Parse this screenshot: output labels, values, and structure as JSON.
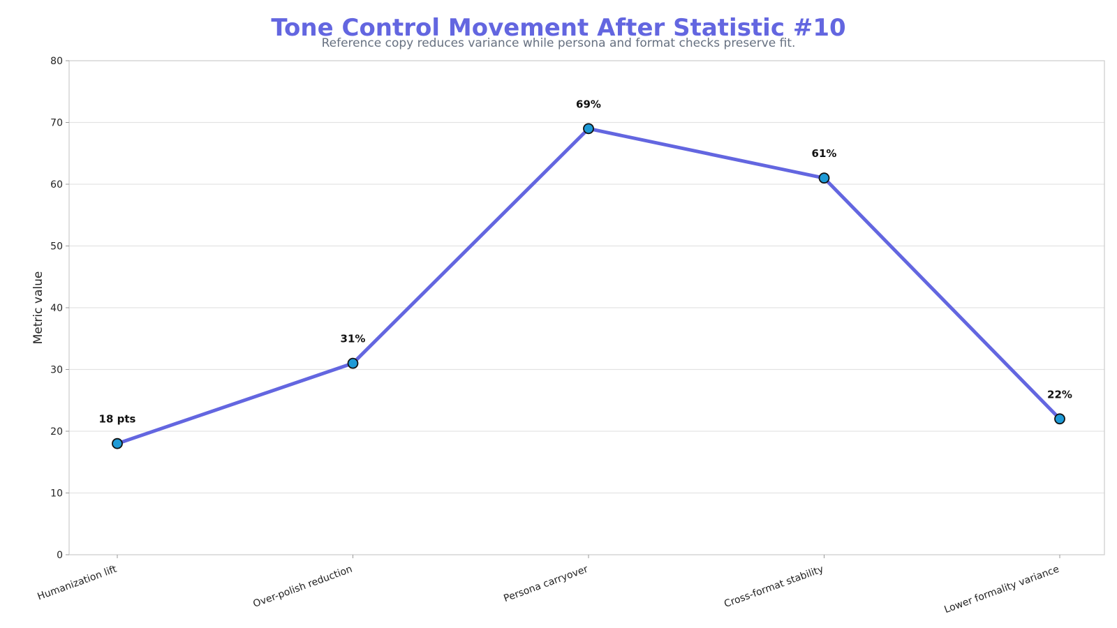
{
  "chart_data": {
    "type": "line",
    "title": "Tone Control Movement After Statistic #10",
    "subtitle": "Reference copy reduces variance while persona and format checks preserve fit.",
    "xlabel": "",
    "ylabel": "Metric value",
    "ylim": [
      0,
      80
    ],
    "yticks": [
      0,
      10,
      20,
      30,
      40,
      50,
      60,
      70,
      80
    ],
    "categories": [
      "Humanization lift",
      "Over-polish reduction",
      "Persona carryover",
      "Cross-format stability",
      "Lower formality variance"
    ],
    "values": [
      18,
      31,
      69,
      61,
      22
    ],
    "data_labels": [
      "18 pts",
      "31%",
      "69%",
      "61%",
      "22%"
    ],
    "grid": "horizontal",
    "colors": {
      "line": "#6366e0",
      "marker": "#1e9ad6",
      "marker_edge": "#111111",
      "title": "#6366e0",
      "subtitle": "#667080"
    }
  }
}
